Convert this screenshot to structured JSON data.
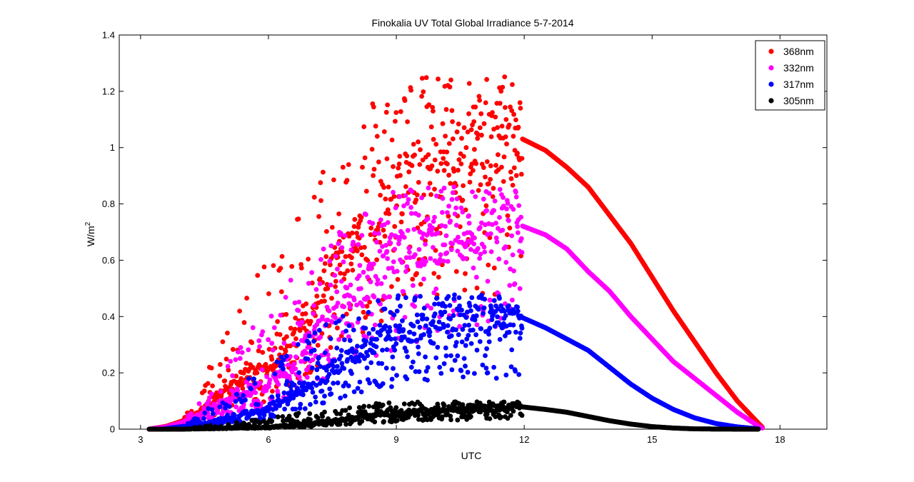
{
  "chart_data": {
    "type": "scatter",
    "title": "Finokalia UV Total Global Irradiance 5-7-2014",
    "xlabel": "UTC",
    "ylabel_main": "W/m",
    "ylabel_sup": "2",
    "xlim": [
      2.5,
      19.1
    ],
    "ylim": [
      0,
      1.4
    ],
    "xticks": [
      3,
      6,
      9,
      12,
      15,
      18
    ],
    "xtick_labels": [
      "3",
      "6",
      "9",
      "12",
      "15",
      "18"
    ],
    "yticks": [
      0,
      0.2,
      0.4,
      0.6,
      0.8,
      1,
      1.2,
      1.4
    ],
    "ytick_labels": [
      "0",
      "0.2",
      "0.4",
      "0.6",
      "0.8",
      "1",
      "1.2",
      "1.4"
    ],
    "grid": false,
    "legend_position": "top-right",
    "series": [
      {
        "name": "368nm",
        "color": "#ff0000",
        "envelope": [
          [
            3.2,
            0
          ],
          [
            3.6,
            0.01
          ],
          [
            4,
            0.03
          ],
          [
            4.5,
            0.08
          ],
          [
            5,
            0.15
          ],
          [
            5.5,
            0.2
          ],
          [
            6,
            0.22
          ],
          [
            6.5,
            0.33
          ],
          [
            7,
            0.45
          ],
          [
            7.5,
            0.58
          ],
          [
            8,
            0.68
          ],
          [
            8.5,
            0.8
          ],
          [
            9,
            0.88
          ],
          [
            9.5,
            0.94
          ],
          [
            10,
            0.98
          ],
          [
            10.5,
            1.0
          ],
          [
            11,
            1.02
          ],
          [
            11.5,
            1.03
          ],
          [
            11.9,
            1.035
          ],
          [
            12.5,
            0.99
          ],
          [
            13,
            0.93
          ],
          [
            13.5,
            0.86
          ],
          [
            14,
            0.76
          ],
          [
            14.5,
            0.66
          ],
          [
            15,
            0.54
          ],
          [
            15.5,
            0.42
          ],
          [
            16,
            0.31
          ],
          [
            16.5,
            0.2
          ],
          [
            17,
            0.1
          ],
          [
            17.5,
            0.02
          ],
          [
            17.6,
            0.005
          ]
        ],
        "morning_scatter_min": 0.05,
        "morning_scatter_max": 1.29
      },
      {
        "name": "332nm",
        "color": "#ff00ff",
        "envelope": [
          [
            3.2,
            0
          ],
          [
            3.6,
            0.008
          ],
          [
            4,
            0.025
          ],
          [
            4.5,
            0.06
          ],
          [
            5,
            0.11
          ],
          [
            5.5,
            0.14
          ],
          [
            6,
            0.16
          ],
          [
            6.5,
            0.24
          ],
          [
            7,
            0.33
          ],
          [
            7.5,
            0.42
          ],
          [
            8,
            0.49
          ],
          [
            8.5,
            0.57
          ],
          [
            9,
            0.63
          ],
          [
            9.5,
            0.67
          ],
          [
            10,
            0.7
          ],
          [
            10.5,
            0.71
          ],
          [
            11,
            0.72
          ],
          [
            11.5,
            0.725
          ],
          [
            11.9,
            0.725
          ],
          [
            12.5,
            0.69
          ],
          [
            13,
            0.64
          ],
          [
            13.5,
            0.56
          ],
          [
            14,
            0.49
          ],
          [
            14.5,
            0.4
          ],
          [
            15,
            0.32
          ],
          [
            15.5,
            0.24
          ],
          [
            16,
            0.18
          ],
          [
            16.5,
            0.12
          ],
          [
            17,
            0.06
          ],
          [
            17.5,
            0.01
          ],
          [
            17.6,
            0.003
          ]
        ],
        "morning_scatter_min": 0.03,
        "morning_scatter_max": 0.88
      },
      {
        "name": "317nm",
        "color": "#0000ff",
        "envelope": [
          [
            3.5,
            0
          ],
          [
            4,
            0.01
          ],
          [
            4.5,
            0.02
          ],
          [
            5,
            0.04
          ],
          [
            5.5,
            0.06
          ],
          [
            6,
            0.08
          ],
          [
            6.5,
            0.12
          ],
          [
            7,
            0.17
          ],
          [
            7.5,
            0.22
          ],
          [
            8,
            0.27
          ],
          [
            8.5,
            0.31
          ],
          [
            9,
            0.34
          ],
          [
            9.5,
            0.37
          ],
          [
            10,
            0.38
          ],
          [
            10.5,
            0.39
          ],
          [
            11,
            0.395
          ],
          [
            11.5,
            0.4
          ],
          [
            11.9,
            0.4
          ],
          [
            12.5,
            0.36
          ],
          [
            13,
            0.32
          ],
          [
            13.5,
            0.28
          ],
          [
            14,
            0.22
          ],
          [
            14.5,
            0.16
          ],
          [
            15,
            0.11
          ],
          [
            15.5,
            0.07
          ],
          [
            16,
            0.04
          ],
          [
            16.5,
            0.02
          ],
          [
            17,
            0.008
          ],
          [
            17.5,
            0.001
          ]
        ],
        "morning_scatter_min": 0.02,
        "morning_scatter_max": 0.49
      },
      {
        "name": "305nm",
        "color": "#000000",
        "envelope": [
          [
            3.2,
            0
          ],
          [
            4,
            0.0
          ],
          [
            5,
            0.003
          ],
          [
            6,
            0.008
          ],
          [
            6.5,
            0.015
          ],
          [
            7,
            0.02
          ],
          [
            7.5,
            0.03
          ],
          [
            8,
            0.04
          ],
          [
            8.5,
            0.05
          ],
          [
            9,
            0.06
          ],
          [
            9.5,
            0.065
          ],
          [
            10,
            0.07
          ],
          [
            10.5,
            0.072
          ],
          [
            11,
            0.075
          ],
          [
            11.5,
            0.078
          ],
          [
            11.9,
            0.08
          ],
          [
            12.5,
            0.07
          ],
          [
            13,
            0.06
          ],
          [
            13.5,
            0.045
          ],
          [
            14,
            0.03
          ],
          [
            14.5,
            0.018
          ],
          [
            15,
            0.009
          ],
          [
            15.5,
            0.004
          ],
          [
            16,
            0.001
          ],
          [
            17,
            0
          ],
          [
            17.5,
            0
          ]
        ],
        "morning_scatter_min": 0.0,
        "morning_scatter_max": 0.1
      }
    ]
  }
}
